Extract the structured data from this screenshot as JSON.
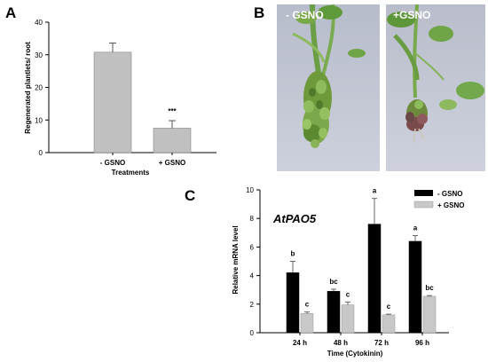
{
  "panels": {
    "a": "A",
    "b": "B",
    "c": "C"
  },
  "photos": {
    "left_label": "- GSNO",
    "right_label": "+GSNO"
  },
  "colors": {
    "bar_gray": "#c0c0c0",
    "bar_black": "#000000",
    "bar_light": "#c8c8c8",
    "photo_bg": "#c2c6d4",
    "plant_green": "#5f9a3a"
  },
  "chart_data": [
    {
      "id": "A",
      "type": "bar",
      "title": "",
      "categories": [
        "- GSNO",
        "+ GSNO"
      ],
      "values": [
        30.8,
        7.5
      ],
      "errors": [
        2.8,
        2.3
      ],
      "annotations": [
        "",
        "***"
      ],
      "xlabel": "Treatments",
      "ylabel": "Regenerated plantlets/ root",
      "ylim": [
        0,
        40
      ],
      "yticks": [
        "0",
        "10",
        "20",
        "30",
        "40"
      ],
      "grid": false
    },
    {
      "id": "C",
      "type": "bar",
      "title": "AtPAO5",
      "categories": [
        "24 h",
        "48 h",
        "72 h",
        "96 h"
      ],
      "series": [
        {
          "name": "- GSNO",
          "values": [
            4.2,
            2.9,
            7.6,
            6.4
          ],
          "errors": [
            0.8,
            0.15,
            1.8,
            0.4
          ],
          "letters": [
            "b",
            "bc",
            "a",
            "a"
          ]
        },
        {
          "name": "+ GSNO",
          "values": [
            1.35,
            1.95,
            1.25,
            2.55
          ],
          "errors": [
            0.1,
            0.2,
            0.05,
            0.05
          ],
          "letters": [
            "c",
            "c",
            "c",
            "bc"
          ]
        }
      ],
      "xlabel": "Time (Cytokinin)",
      "ylabel": "Relative mRNA level",
      "ylim": [
        0,
        10
      ],
      "yticks": [
        "0",
        "2",
        "4",
        "6",
        "8",
        "10"
      ],
      "legend": "top-right",
      "grid": false
    }
  ]
}
